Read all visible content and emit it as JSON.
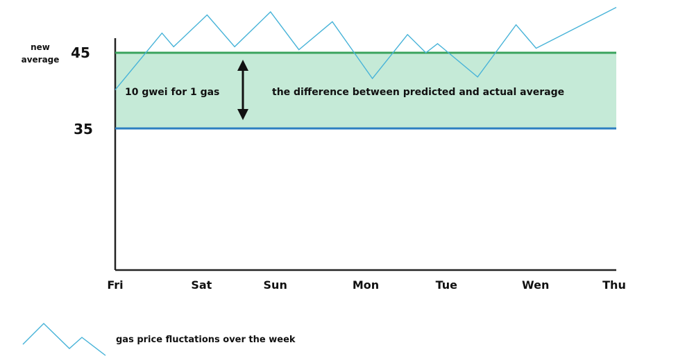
{
  "chart_data": {
    "type": "line",
    "x": [
      "Fri",
      "Sat",
      "Sun",
      "Mon",
      "Tue",
      "Wen",
      "Thu"
    ],
    "ylabel_lines": [
      "new",
      "average"
    ],
    "y_ticks": [
      {
        "value": 45,
        "label": "45"
      },
      {
        "value": 35,
        "label": "35"
      }
    ],
    "ylim": [
      10,
      51
    ],
    "lines": {
      "new_average": {
        "value": 45,
        "color": "#3aa35d"
      },
      "predicted": {
        "value": 35,
        "color": "#2d7fc1"
      }
    },
    "band": {
      "from": 35,
      "to": 45,
      "color": "#c5ead7"
    },
    "series": [
      {
        "name": "gas price fluctations over the week",
        "color": "#47b3d8",
        "points": [
          [
            0.0,
            40.1
          ],
          [
            0.56,
            47.6
          ],
          [
            0.7,
            45.8
          ],
          [
            1.1,
            50.0
          ],
          [
            1.43,
            45.8
          ],
          [
            1.86,
            50.4
          ],
          [
            2.2,
            45.4
          ],
          [
            2.6,
            49.1
          ],
          [
            3.08,
            41.6
          ],
          [
            3.5,
            47.4
          ],
          [
            3.72,
            45.0
          ],
          [
            3.86,
            46.2
          ],
          [
            4.34,
            41.8
          ],
          [
            4.8,
            48.7
          ],
          [
            5.04,
            45.6
          ],
          [
            6.0,
            51.0
          ]
        ]
      }
    ],
    "annotations": {
      "left": "10 gwei for 1 gas",
      "right": "the difference between predicted and actual average"
    },
    "grid": false,
    "legend": "bottom-left"
  }
}
